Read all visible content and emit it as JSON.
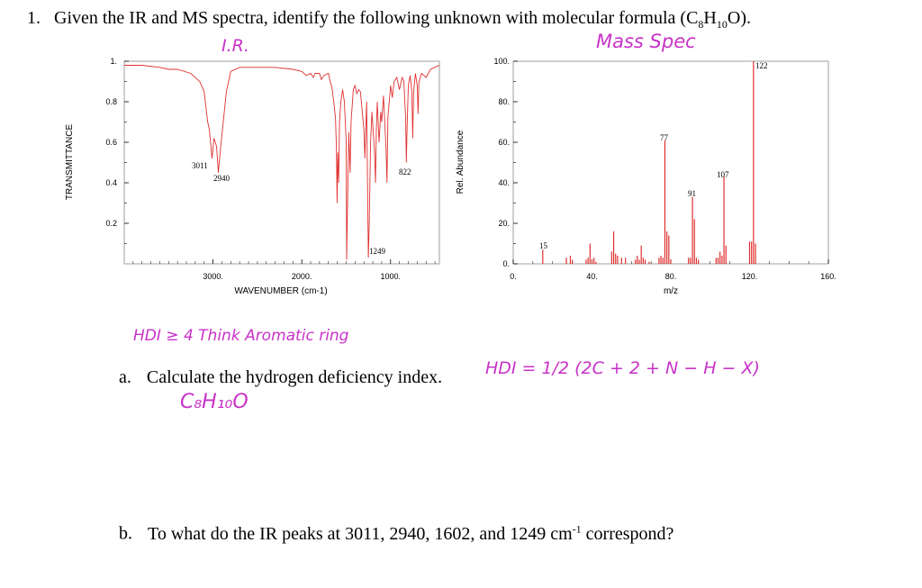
{
  "question": {
    "number": "1.",
    "text_before": "Given the IR and MS spectra, identify the following unknown with molecular formula (C",
    "sub_c": "8",
    "h": "H",
    "sub_h": "10",
    "text_after": "O).",
    "part_a_label": "a.",
    "part_a": "Calculate the hydrogen deficiency index.",
    "part_b_label": "b.",
    "part_b_before": "To what do the IR peaks at 3011, 2940, 1602, and 1249 cm",
    "part_b_sup": "-1",
    "part_b_after": " correspond?"
  },
  "handwriting": {
    "ir_label": "I.R.",
    "ms_label": "Mass Spec",
    "hdi_note": "HDI ≥ 4  Think Aromatic ring",
    "hdi_formula": "HDI =  1/2 (2C + 2 + N − H − X)",
    "formula": "C₈H₁₀O"
  },
  "colors": {
    "spectrum": "#e03030",
    "handwriting": "#c832c8"
  },
  "chart_data": [
    {
      "type": "line",
      "name": "IR spectrum",
      "xlabel": "WAVENUMBER (cm-1)",
      "ylabel": "TRANSMITTANCE",
      "xlim": [
        4000,
        450
      ],
      "ylim": [
        0.0,
        1.0
      ],
      "x_ticks": [
        "3000.",
        "2000.",
        "1000."
      ],
      "y_ticks": [
        "1.",
        "0.8",
        "0.6",
        "0.4",
        "0.2"
      ],
      "annotations": [
        "3011",
        "2940",
        "822",
        "1249"
      ],
      "points": [
        [
          4000,
          0.98
        ],
        [
          3800,
          0.98
        ],
        [
          3600,
          0.97
        ],
        [
          3500,
          0.96
        ],
        [
          3400,
          0.96
        ],
        [
          3250,
          0.94
        ],
        [
          3150,
          0.9
        ],
        [
          3100,
          0.85
        ],
        [
          3060,
          0.7
        ],
        [
          3040,
          0.66
        ],
        [
          3011,
          0.52
        ],
        [
          2990,
          0.62
        ],
        [
          2960,
          0.58
        ],
        [
          2940,
          0.45
        ],
        [
          2920,
          0.55
        ],
        [
          2880,
          0.72
        ],
        [
          2850,
          0.85
        ],
        [
          2800,
          0.95
        ],
        [
          2700,
          0.97
        ],
        [
          2500,
          0.97
        ],
        [
          2300,
          0.97
        ],
        [
          2100,
          0.96
        ],
        [
          2000,
          0.95
        ],
        [
          1950,
          0.93
        ],
        [
          1900,
          0.94
        ],
        [
          1870,
          0.92
        ],
        [
          1850,
          0.94
        ],
        [
          1800,
          0.94
        ],
        [
          1780,
          0.91
        ],
        [
          1750,
          0.93
        ],
        [
          1700,
          0.94
        ],
        [
          1680,
          0.9
        ],
        [
          1660,
          0.87
        ],
        [
          1640,
          0.8
        ],
        [
          1620,
          0.72
        ],
        [
          1610,
          0.58
        ],
        [
          1602,
          0.3
        ],
        [
          1595,
          0.55
        ],
        [
          1585,
          0.4
        ],
        [
          1575,
          0.7
        ],
        [
          1560,
          0.8
        ],
        [
          1540,
          0.86
        ],
        [
          1520,
          0.8
        ],
        [
          1500,
          0.6
        ],
        [
          1495,
          0.02
        ],
        [
          1485,
          0.3
        ],
        [
          1470,
          0.65
        ],
        [
          1455,
          0.45
        ],
        [
          1445,
          0.7
        ],
        [
          1420,
          0.86
        ],
        [
          1400,
          0.88
        ],
        [
          1380,
          0.84
        ],
        [
          1360,
          0.86
        ],
        [
          1340,
          0.85
        ],
        [
          1300,
          0.66
        ],
        [
          1290,
          0.52
        ],
        [
          1270,
          0.8
        ],
        [
          1250,
          0.03
        ],
        [
          1240,
          0.2
        ],
        [
          1225,
          0.6
        ],
        [
          1210,
          0.75
        ],
        [
          1180,
          0.55
        ],
        [
          1170,
          0.4
        ],
        [
          1160,
          0.66
        ],
        [
          1150,
          0.8
        ],
        [
          1130,
          0.6
        ],
        [
          1110,
          0.75
        ],
        [
          1100,
          0.7
        ],
        [
          1080,
          0.83
        ],
        [
          1050,
          0.56
        ],
        [
          1040,
          0.4
        ],
        [
          1030,
          0.72
        ],
        [
          1000,
          0.88
        ],
        [
          980,
          0.82
        ],
        [
          960,
          0.9
        ],
        [
          930,
          0.92
        ],
        [
          900,
          0.86
        ],
        [
          870,
          0.92
        ],
        [
          850,
          0.9
        ],
        [
          830,
          0.72
        ],
        [
          822,
          0.5
        ],
        [
          815,
          0.65
        ],
        [
          800,
          0.88
        ],
        [
          780,
          0.93
        ],
        [
          760,
          0.85
        ],
        [
          750,
          0.62
        ],
        [
          740,
          0.85
        ],
        [
          720,
          0.94
        ],
        [
          700,
          0.88
        ],
        [
          690,
          0.74
        ],
        [
          680,
          0.9
        ],
        [
          650,
          0.94
        ],
        [
          600,
          0.92
        ],
        [
          550,
          0.96
        ],
        [
          500,
          0.97
        ],
        [
          450,
          0.98
        ]
      ]
    },
    {
      "type": "bar",
      "name": "Mass spectrum",
      "xlabel": "m/z",
      "ylabel": "Rel. Abundance",
      "xlim": [
        0,
        160
      ],
      "ylim": [
        0,
        100
      ],
      "x_ticks": [
        "0.",
        "40.",
        "80.",
        "120.",
        "160."
      ],
      "y_ticks": [
        "100.",
        "80.",
        "60.",
        "40.",
        "20.",
        "0."
      ],
      "annotations": [
        "15",
        "77",
        "107",
        "91",
        "122"
      ],
      "peaks": [
        [
          15,
          7
        ],
        [
          27,
          3
        ],
        [
          29,
          4
        ],
        [
          30,
          2
        ],
        [
          37,
          2
        ],
        [
          38,
          3
        ],
        [
          39,
          10
        ],
        [
          40,
          2
        ],
        [
          41,
          3
        ],
        [
          42,
          1
        ],
        [
          50,
          6
        ],
        [
          51,
          16
        ],
        [
          52,
          5
        ],
        [
          53,
          4
        ],
        [
          55,
          3
        ],
        [
          57,
          3
        ],
        [
          62,
          2
        ],
        [
          63,
          4
        ],
        [
          64,
          2
        ],
        [
          65,
          9
        ],
        [
          66,
          3
        ],
        [
          67,
          2
        ],
        [
          69,
          1
        ],
        [
          74,
          3
        ],
        [
          75,
          4
        ],
        [
          76,
          3
        ],
        [
          77,
          61
        ],
        [
          78,
          16
        ],
        [
          79,
          14
        ],
        [
          80,
          2
        ],
        [
          89,
          3
        ],
        [
          90,
          3
        ],
        [
          91,
          33
        ],
        [
          92,
          22
        ],
        [
          93,
          3
        ],
        [
          94,
          2
        ],
        [
          103,
          3
        ],
        [
          104,
          3
        ],
        [
          105,
          6
        ],
        [
          106,
          4
        ],
        [
          107,
          43
        ],
        [
          108,
          9
        ],
        [
          120,
          11
        ],
        [
          121,
          11
        ],
        [
          122,
          100
        ],
        [
          123,
          10
        ]
      ]
    }
  ]
}
